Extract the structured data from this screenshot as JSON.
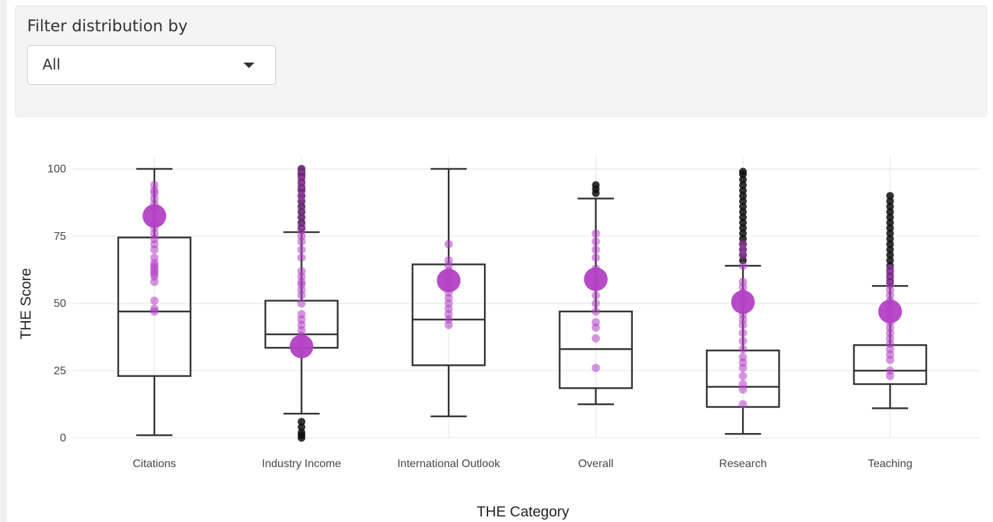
{
  "filter": {
    "label": "Filter distribution by",
    "selected": "All"
  },
  "chart_data": {
    "type": "box",
    "xlabel": "THE Category",
    "ylabel": "THE Score",
    "ylim": [
      0,
      100
    ],
    "yticks": [
      0,
      25,
      50,
      75,
      100
    ],
    "grid": true,
    "legend": "none",
    "colors": {
      "box_stroke": "#333333",
      "outlier": "#111111",
      "point": "#b340c4",
      "highlight": "#b340c4",
      "grid": "#ececec"
    },
    "categories": [
      "Citations",
      "Industry Income",
      "International Outlook",
      "Overall",
      "Research",
      "Teaching"
    ],
    "boxes": [
      {
        "category": "Citations",
        "min": 1,
        "q1": 23,
        "median": 47,
        "q3": 74.5,
        "max": 100,
        "outliers": []
      },
      {
        "category": "Industry Income",
        "min": 9,
        "q1": 33.5,
        "median": 38.5,
        "q3": 51,
        "max": 76.5,
        "outliers": [
          78,
          80,
          82,
          84,
          86,
          88,
          90,
          92,
          93,
          95,
          97,
          98,
          99,
          100,
          0,
          1,
          2,
          4,
          6
        ]
      },
      {
        "category": "International Outlook",
        "min": 8,
        "q1": 27,
        "median": 44,
        "q3": 64.5,
        "max": 100,
        "outliers": []
      },
      {
        "category": "Overall",
        "min": 12.5,
        "q1": 18.5,
        "median": 33,
        "q3": 47,
        "max": 89,
        "outliers": [
          91,
          92.5,
          94
        ]
      },
      {
        "category": "Research",
        "min": 1.5,
        "q1": 11.5,
        "median": 19,
        "q3": 32.5,
        "max": 64,
        "outliers": [
          66,
          68,
          70,
          72,
          74,
          76,
          78,
          80,
          82,
          84,
          86,
          88,
          90,
          92,
          94,
          96,
          98,
          99
        ]
      },
      {
        "category": "Teaching",
        "min": 11,
        "q1": 20,
        "median": 25,
        "q3": 34.5,
        "max": 56.5,
        "outliers": [
          58,
          60,
          62,
          64,
          66,
          68,
          70,
          72,
          74,
          76,
          78,
          80,
          82,
          84,
          86,
          88,
          90
        ]
      }
    ],
    "points": [
      {
        "category": "Citations",
        "values": [
          47,
          48,
          51,
          58,
          60,
          61,
          62,
          63,
          64,
          65,
          67,
          70,
          72,
          74,
          76,
          78,
          80,
          85,
          87,
          89,
          91,
          92,
          94
        ]
      },
      {
        "category": "Industry Income",
        "values": [
          33,
          36,
          38,
          40,
          42,
          44,
          46,
          50,
          53,
          55,
          57,
          58,
          60,
          62,
          67,
          70,
          73,
          75,
          77,
          79,
          82,
          85,
          88,
          90,
          92,
          94,
          96,
          98,
          100
        ]
      },
      {
        "category": "International Outlook",
        "values": [
          42,
          44,
          46,
          48,
          50,
          52,
          54,
          56,
          58,
          60,
          62,
          64,
          66,
          72
        ]
      },
      {
        "category": "Overall",
        "values": [
          26,
          37,
          41,
          43,
          47,
          50,
          53,
          56,
          59,
          63,
          67,
          70,
          73,
          76
        ]
      },
      {
        "category": "Research",
        "values": [
          12.5,
          18,
          20,
          23,
          26,
          28,
          30,
          33,
          36,
          39,
          42,
          44,
          46,
          50,
          52,
          54,
          56,
          58,
          64,
          68,
          70,
          72
        ]
      },
      {
        "category": "Teaching",
        "values": [
          23,
          25,
          29,
          31,
          33,
          35,
          37,
          39,
          41,
          43,
          45,
          47,
          49,
          51,
          53,
          55,
          57,
          59,
          61,
          63
        ]
      }
    ],
    "highlight_points": [
      {
        "category": "Citations",
        "value": 82.5
      },
      {
        "category": "Industry Income",
        "value": 34
      },
      {
        "category": "International Outlook",
        "value": 58.5
      },
      {
        "category": "Overall",
        "value": 59
      },
      {
        "category": "Research",
        "value": 50.5
      },
      {
        "category": "Teaching",
        "value": 47
      }
    ]
  }
}
